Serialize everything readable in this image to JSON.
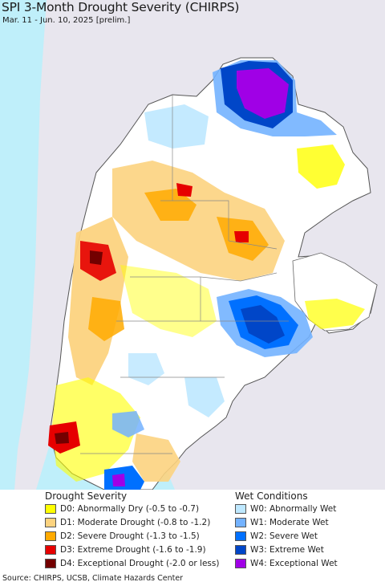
{
  "map": {
    "title": "SPI 3-Month Drought Severity (CHIRPS)",
    "subtitle": "Mar. 11 - Jun. 10, 2025 [prelim.]"
  },
  "colors": {
    "ocean": "#bfeffa",
    "land_outside": "#e8e6ee",
    "land_inside": "#ffffff",
    "border": "#777777"
  },
  "legend": {
    "drought_heading": "Drought Severity",
    "wet_heading": "Wet Conditions",
    "drought_items": [
      {
        "label": "D0: Abnormally Dry (-0.5 to -0.7)",
        "color": "#ffff00"
      },
      {
        "label": "D1: Moderate Drought (-0.8 to -1.2)",
        "color": "#fcd37f"
      },
      {
        "label": "D2: Severe Drought (-1.3 to -1.5)",
        "color": "#ffaa00"
      },
      {
        "label": "D3: Extreme Drought (-1.6 to -1.9)",
        "color": "#e60000"
      },
      {
        "label": "D4: Exceptional Drought (-2.0 or less)",
        "color": "#730000"
      }
    ],
    "wet_items": [
      {
        "label": "W0: Abnormally Wet",
        "color": "#bee8ff"
      },
      {
        "label": "W1: Moderate Wet",
        "color": "#73b2ff"
      },
      {
        "label": "W2: Severe Wet",
        "color": "#0070ff"
      },
      {
        "label": "W3: Extreme Wet",
        "color": "#0046c8"
      },
      {
        "label": "W4: Exceptional Wet",
        "color": "#a000e6"
      }
    ]
  },
  "footer": {
    "source": "Source: CHIRPS, UCSB, Climate Hazards Center"
  }
}
